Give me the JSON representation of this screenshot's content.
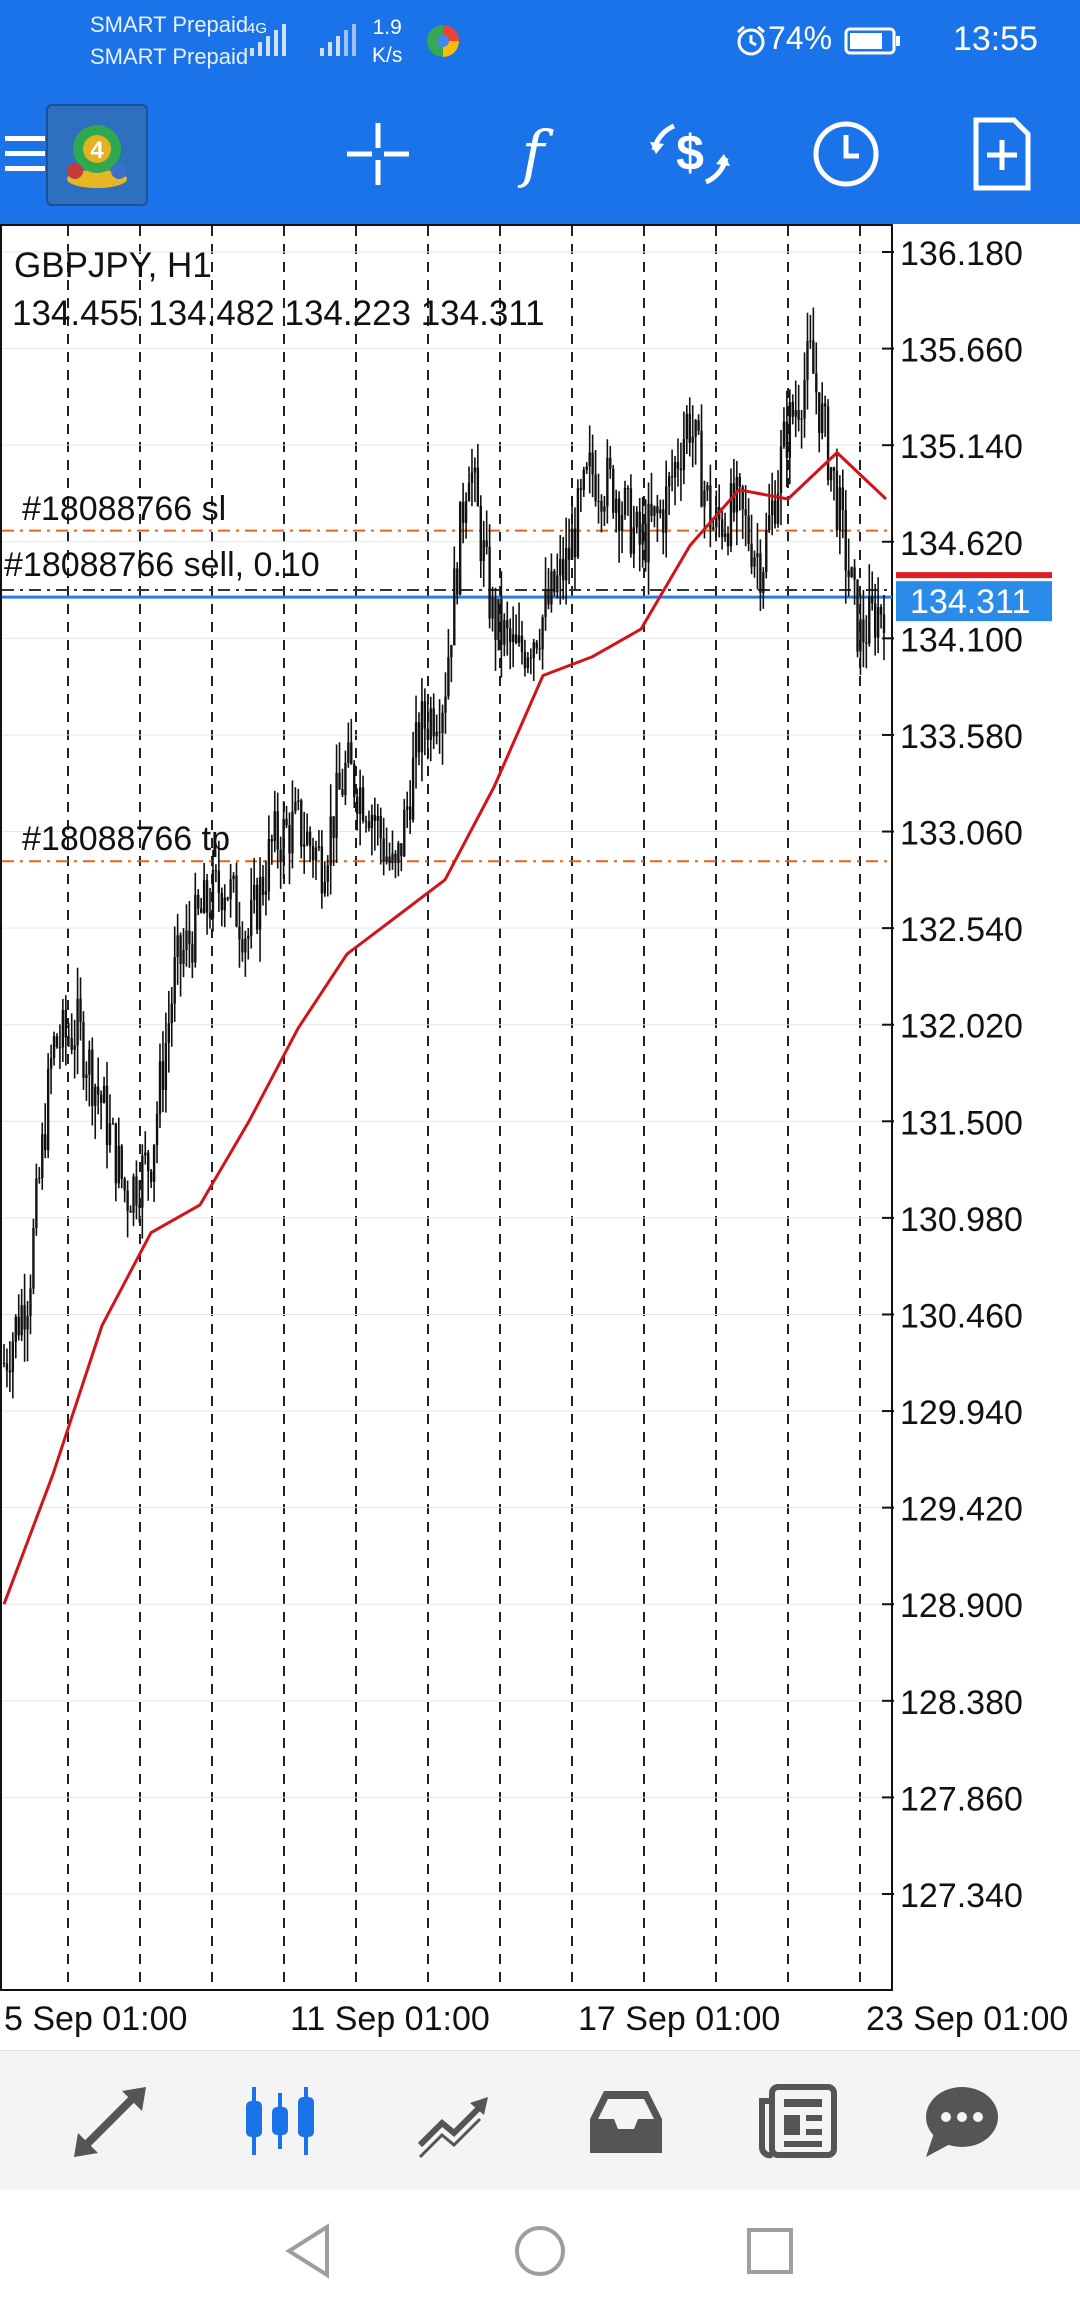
{
  "status_bar": {
    "carrier_1": "SMART Prepaid",
    "carrier_2": "SMART Prepaid",
    "network_type": "4G",
    "net_speed_value": "1.9",
    "net_speed_unit": "K/s",
    "battery_percent": "74%",
    "time": "13:55",
    "icons": [
      "signal-icon",
      "signal-icon",
      "app-notification-icon",
      "alarm-icon",
      "battery-icon"
    ]
  },
  "toolbar": {
    "icons": [
      "menu-icon",
      "metatrader4-logo",
      "crosshair-icon",
      "indicators-icon",
      "trade-icon",
      "timeframe-clock-icon",
      "new-order-icon"
    ]
  },
  "chart": {
    "symbol": "GBPJPY, H1",
    "ohlc": "134.455 134.482 134.223 134.311",
    "current_price": "134.311",
    "sl_label": "#18088766 sl",
    "sell_label": "#18088766 sell, 0.10",
    "tp_label": "#18088766 tp",
    "price_ticks": [
      "136.180",
      "135.660",
      "135.140",
      "134.620",
      "134.100",
      "133.580",
      "133.060",
      "132.540",
      "132.020",
      "131.500",
      "130.980",
      "130.460",
      "129.940",
      "129.420",
      "128.900",
      "128.380",
      "127.860",
      "127.340"
    ],
    "date_ticks": [
      "5 Sep 01:00",
      "11 Sep 01:00",
      "17 Sep 01:00",
      "23 Sep 01:00"
    ],
    "colors": {
      "candles": "#111111",
      "moving_average": "#d0141a",
      "sl_tp_lines": "#e0651a",
      "sell_line": "#2c7be5",
      "price_badge": "#2b8be8",
      "grid": "#222222"
    }
  },
  "chart_data": {
    "type": "candlestick",
    "symbol": "GBPJPY",
    "timeframe": "H1",
    "ylim": [
      126.9,
      136.5
    ],
    "open": 134.455,
    "high": 134.482,
    "low": 134.223,
    "close": 134.311,
    "stop_loss": 134.68,
    "sell_entry": 134.36,
    "take_profit": 132.9,
    "x_tick_labels": [
      "5 Sep 01:00",
      "11 Sep 01:00",
      "17 Sep 01:00",
      "23 Sep 01:00"
    ],
    "price_path": [
      130.2,
      130.6,
      131.9,
      132.0,
      131.6,
      131.1,
      131.3,
      132.3,
      132.6,
      132.8,
      132.5,
      133.0,
      133.1,
      132.9,
      133.4,
      133.2,
      132.8,
      133.6,
      133.8,
      135.1,
      134.2,
      134.0,
      134.2,
      134.5,
      135.0,
      134.9,
      134.6,
      134.8,
      135.3,
      134.7,
      134.8,
      134.5,
      135.2,
      135.6,
      134.9,
      134.1,
      134.3
    ],
    "ma_path": [
      128.9,
      129.6,
      130.4,
      130.9,
      131.05,
      131.5,
      132.0,
      132.4,
      132.6,
      132.8,
      133.3,
      133.9,
      134.0,
      134.15,
      134.6,
      134.9,
      134.85,
      135.1,
      134.85
    ]
  },
  "bottom_nav": {
    "icons": [
      "quotes-icon",
      "chart-icon",
      "trade-icon",
      "history-icon",
      "news-icon",
      "chat-icon"
    ],
    "active": "chart-icon"
  },
  "system_nav": {
    "icons": [
      "back-icon",
      "home-icon",
      "recents-icon"
    ]
  }
}
